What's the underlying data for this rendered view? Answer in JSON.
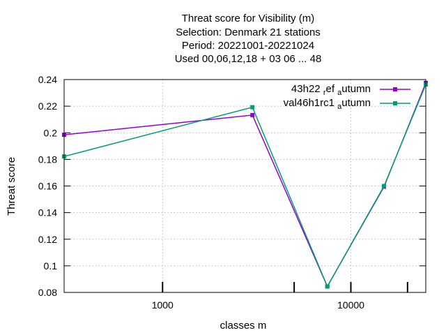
{
  "chart_data": {
    "type": "line",
    "title_lines": [
      "Threat score  for Visibility (m)",
      "Selection: Denmark     21 stations",
      "Period: 20221001-20221024",
      "Used  00,06,12,18  + 03 06 ... 48"
    ],
    "xlabel": "classes m",
    "ylabel": "Threat score",
    "x_scale": "log",
    "xlim": [
      300,
      25000
    ],
    "ylim": [
      0.08,
      0.24
    ],
    "grid": true,
    "legend_position": "top-right",
    "x_tick_labels": [
      {
        "value": 1000,
        "label": "1000"
      },
      {
        "value": 10000,
        "label": "10000"
      }
    ],
    "x_minor_marks": [
      1000,
      5000,
      10000,
      20000
    ],
    "y_ticks": [
      0.08,
      0.1,
      0.12,
      0.14,
      0.16,
      0.18,
      0.2,
      0.22,
      0.24
    ],
    "y_tick_labels": [
      "0.08",
      "0.1",
      "0.12",
      "0.14",
      "0.16",
      "0.18",
      "0.2",
      "0.22",
      "0.24"
    ],
    "x": [
      300,
      3000,
      7500,
      15000,
      25000
    ],
    "series": [
      {
        "name_main": "43h22",
        "name_sub1": "r",
        "name_mid": "ef",
        "name_sub2": "a",
        "name_end": "utumn",
        "color": "#9400d3",
        "values": [
          0.1985,
          0.2133,
          0.0845,
          0.1595,
          0.2375
        ]
      },
      {
        "name_main": "val46h1rc1",
        "name_sub1": "",
        "name_mid": "",
        "name_sub2": "a",
        "name_end": "utumn",
        "color": "#009e73",
        "values": [
          0.1822,
          0.2192,
          0.0845,
          0.16,
          0.2363
        ]
      }
    ]
  }
}
